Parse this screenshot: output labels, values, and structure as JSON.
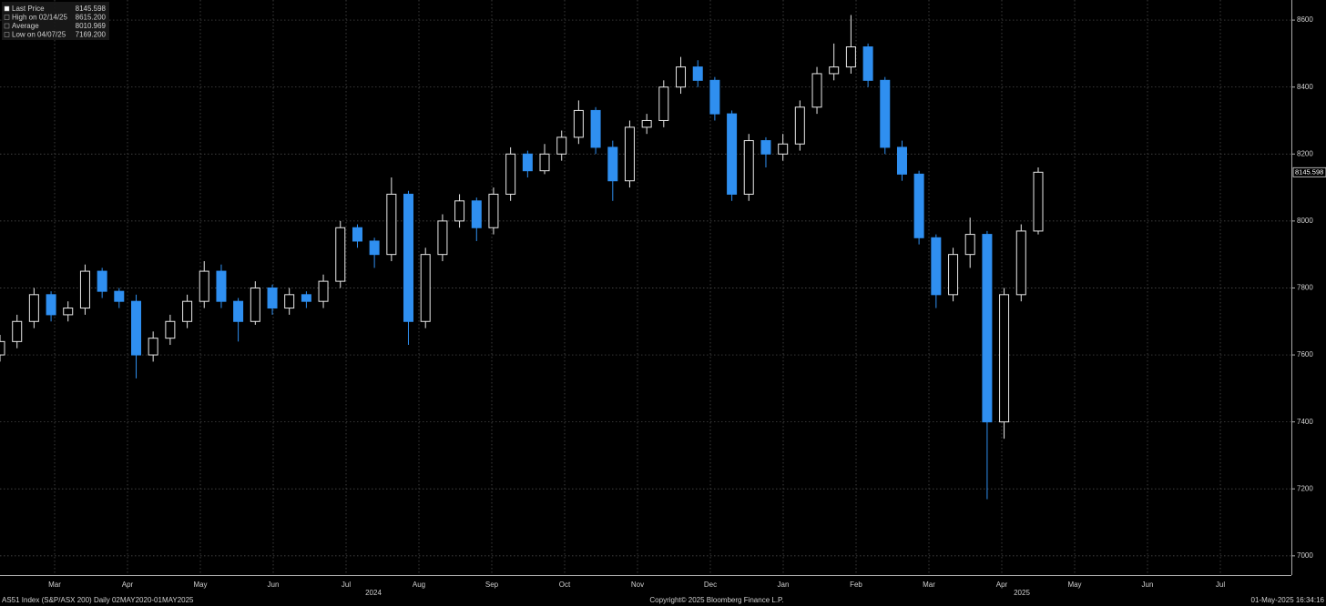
{
  "chart_data": {
    "type": "candlestick",
    "x": [
      0.75,
      0.984,
      1.217,
      1.451,
      1.684,
      1.918,
      2.152,
      2.385,
      2.619,
      2.852,
      3.086,
      3.32,
      3.553,
      3.787,
      4.02,
      4.254,
      4.488,
      4.721,
      4.955,
      5.188,
      5.422,
      5.656,
      5.889,
      6.123,
      6.356,
      6.59,
      6.824,
      7.057,
      7.291,
      7.524,
      7.758,
      7.992,
      8.225,
      8.459,
      8.692,
      8.926,
      9.16,
      9.393,
      9.627,
      9.86,
      10.094,
      10.328,
      10.561,
      10.795,
      11.028,
      11.262,
      11.496,
      11.729,
      11.963,
      12.196,
      12.43,
      12.664,
      12.897,
      13.131,
      13.364,
      13.598,
      13.832,
      14.065,
      14.299,
      14.532,
      14.766,
      15.0
    ],
    "open": [
      7600,
      7640,
      7700,
      7780,
      7720,
      7740,
      7850,
      7790,
      7760,
      7600,
      7650,
      7700,
      7760,
      7850,
      7760,
      7700,
      7800,
      7740,
      7780,
      7760,
      7820,
      7980,
      7940,
      7900,
      8080,
      7700,
      7900,
      8000,
      8060,
      7980,
      8080,
      8200,
      8150,
      8200,
      8250,
      8330,
      8220,
      8120,
      8280,
      8300,
      8400,
      8460,
      8420,
      8320,
      8080,
      8240,
      8200,
      8230,
      8340,
      8440,
      8460,
      8520,
      8420,
      8220,
      8140,
      7950,
      7780,
      7900,
      7960,
      7400,
      7780,
      7970
    ],
    "high": [
      7660,
      7720,
      7800,
      7790,
      7760,
      7870,
      7860,
      7800,
      7780,
      7670,
      7720,
      7780,
      7880,
      7870,
      7770,
      7820,
      7810,
      7800,
      7790,
      7840,
      8000,
      7990,
      7950,
      8130,
      8090,
      7920,
      8020,
      8080,
      8070,
      8100,
      8220,
      8210,
      8230,
      8270,
      8360,
      8340,
      8240,
      8300,
      8320,
      8420,
      8490,
      8480,
      8430,
      8330,
      8260,
      8250,
      8260,
      8360,
      8460,
      8530,
      8615.2,
      8530,
      8430,
      8240,
      8150,
      7960,
      7920,
      8010,
      7970,
      7800,
      7990,
      8160
    ],
    "low": [
      7580,
      7620,
      7680,
      7700,
      7700,
      7720,
      7770,
      7740,
      7530,
      7580,
      7630,
      7680,
      7740,
      7740,
      7640,
      7690,
      7720,
      7720,
      7740,
      7740,
      7800,
      7920,
      7860,
      7880,
      7630,
      7680,
      7880,
      7980,
      7940,
      7960,
      8060,
      8130,
      8140,
      8180,
      8230,
      8200,
      8060,
      8100,
      8260,
      8280,
      8380,
      8400,
      8300,
      8060,
      8060,
      8160,
      8180,
      8210,
      8320,
      8420,
      8440,
      8400,
      8200,
      8120,
      7930,
      7740,
      7760,
      7860,
      7169.2,
      7350,
      7760,
      7960
    ],
    "close": [
      7640,
      7700,
      7780,
      7720,
      7740,
      7850,
      7790,
      7760,
      7600,
      7650,
      7700,
      7760,
      7850,
      7760,
      7700,
      7800,
      7740,
      7780,
      7760,
      7820,
      7980,
      7940,
      7900,
      8080,
      7700,
      7900,
      8000,
      8060,
      7980,
      8080,
      8200,
      8150,
      8200,
      8250,
      8330,
      8220,
      8120,
      8280,
      8300,
      8400,
      8460,
      8420,
      8320,
      8080,
      8240,
      8200,
      8230,
      8340,
      8440,
      8460,
      8520,
      8420,
      8220,
      8140,
      7950,
      7780,
      7900,
      7960,
      7400,
      7780,
      7970,
      8145.598
    ],
    "up_color": "#e8e8e8",
    "down_color": "#2f8ff0",
    "xlim": [
      0.75,
      18.475
    ],
    "ylim": [
      6948,
      8660
    ],
    "yticks": [
      7000,
      7200,
      7400,
      7600,
      7800,
      8000,
      8200,
      8400,
      8600
    ],
    "xticks": [
      {
        "value": 1.5,
        "label": "Mar"
      },
      {
        "value": 2.5,
        "label": "Apr"
      },
      {
        "value": 3.5,
        "label": "May"
      },
      {
        "value": 4.5,
        "label": "Jun"
      },
      {
        "value": 5.5,
        "label": "Jul"
      },
      {
        "value": 6.5,
        "label": "Aug"
      },
      {
        "value": 7.5,
        "label": "Sep"
      },
      {
        "value": 8.5,
        "label": "Oct"
      },
      {
        "value": 9.5,
        "label": "Nov"
      },
      {
        "value": 10.5,
        "label": "Dec"
      },
      {
        "value": 11.5,
        "label": "Jan"
      },
      {
        "value": 12.5,
        "label": "Feb"
      },
      {
        "value": 13.5,
        "label": "Mar"
      },
      {
        "value": 14.5,
        "label": "Apr"
      },
      {
        "value": 15.5,
        "label": "May"
      },
      {
        "value": 16.5,
        "label": "Jun"
      },
      {
        "value": 17.5,
        "label": "Jul"
      }
    ],
    "year_labels": [
      {
        "value": 5.875,
        "label": "2024"
      },
      {
        "value": 14.775,
        "label": "2025"
      }
    ],
    "grid": true,
    "legend": {
      "names": [
        "Last Price",
        "High on 02/14/25",
        "Average",
        "Low on 04/07/25"
      ],
      "values": [
        8145.598,
        8615.2,
        8010.969,
        7169.2
      ],
      "value_labels": [
        "8145.598",
        "8615.200",
        "8010.969",
        "7169.200"
      ]
    },
    "last_price_label": "8145.598",
    "footer": {
      "left": "AS51 Index (S&P/ASX 200)  Daily 02MAY2020-01MAY2025",
      "center": "Copyright© 2025 Bloomberg Finance L.P.",
      "right": "01-May-2025 16:34:16"
    }
  }
}
